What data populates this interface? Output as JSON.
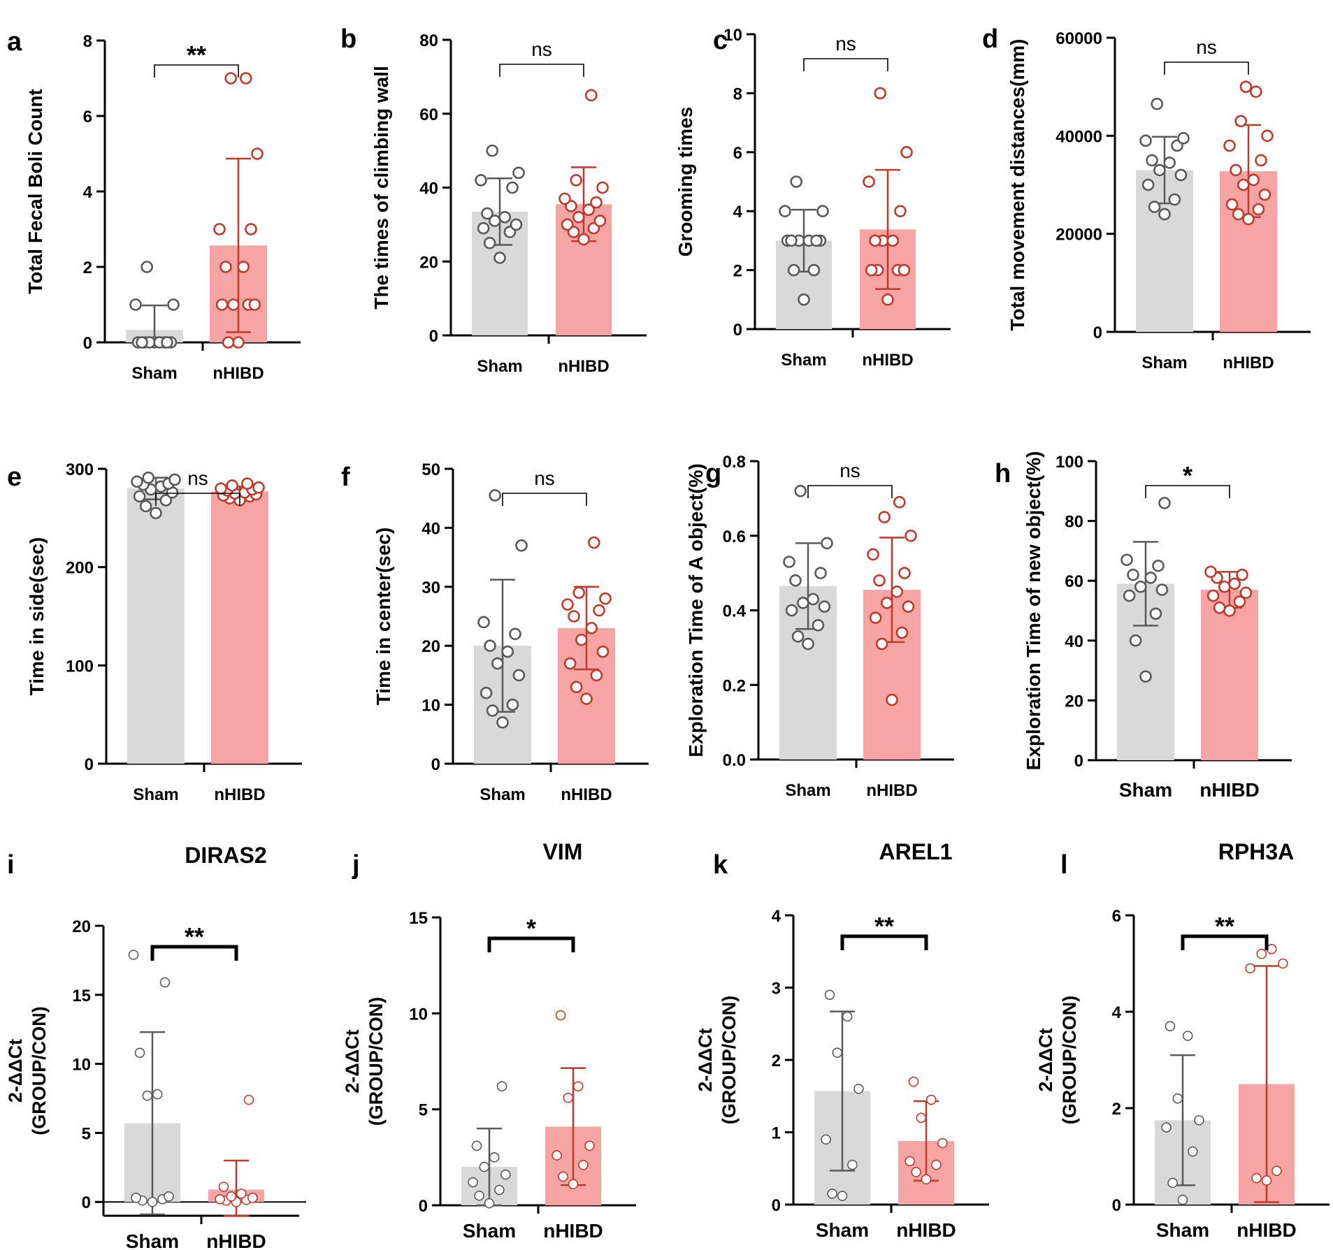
{
  "figure": {
    "colors": {
      "sham_bar": "#d9d9d9",
      "sham_point": "#595959",
      "nhibd_bar": "#f7a4a4",
      "nhibd_point": "#c0392b",
      "axis": "#000000"
    }
  },
  "chart_data": [
    {
      "panel_label": "a",
      "type": "bar",
      "title": "",
      "ylabel": "Total Fecal Boli Count",
      "ylim": [
        0,
        8
      ],
      "yticks": [
        "0",
        "2",
        "4",
        "6",
        "8"
      ],
      "categories": [
        "Sham",
        "nHIBD"
      ],
      "significance": "**",
      "bracket_style": "thin",
      "series": [
        {
          "name": "Sham",
          "mean": 0.33,
          "sd": 0.65,
          "points": [
            0,
            0,
            0,
            0,
            0,
            0,
            0,
            0,
            0,
            1,
            1,
            2
          ]
        },
        {
          "name": "nHIBD",
          "mean": 2.57,
          "sd": 2.3,
          "points": [
            0,
            0,
            1,
            1,
            1,
            1,
            2,
            2,
            3,
            3,
            5,
            7,
            7
          ]
        }
      ]
    },
    {
      "panel_label": "b",
      "type": "bar",
      "title": "",
      "ylabel": "The times of climbing wall",
      "ylim": [
        0,
        80
      ],
      "yticks": [
        "0",
        "20",
        "40",
        "60",
        "80"
      ],
      "categories": [
        "Sham",
        "nHIBD"
      ],
      "significance": "ns",
      "bracket_style": "thin",
      "series": [
        {
          "name": "Sham",
          "mean": 33.5,
          "sd": 9,
          "points": [
            21,
            25,
            28,
            29,
            30,
            31,
            32,
            33,
            40,
            42,
            44,
            50
          ]
        },
        {
          "name": "nHIBD",
          "mean": 35.5,
          "sd": 10,
          "points": [
            26,
            28,
            29,
            30,
            31,
            32,
            34,
            35,
            36,
            37,
            40,
            42,
            65
          ]
        }
      ]
    },
    {
      "panel_label": "c",
      "type": "bar",
      "title": "",
      "ylabel": "Grooming times",
      "ylim": [
        0,
        10
      ],
      "yticks": [
        "0",
        "2",
        "4",
        "6",
        "8",
        "10"
      ],
      "categories": [
        "Sham",
        "nHIBD"
      ],
      "significance": "ns",
      "bracket_style": "thin",
      "series": [
        {
          "name": "Sham",
          "mean": 3,
          "sd": 1.05,
          "points": [
            1,
            2,
            2,
            3,
            3,
            3,
            3,
            3,
            3,
            4,
            4,
            5
          ]
        },
        {
          "name": "nHIBD",
          "mean": 3.38,
          "sd": 2.02,
          "points": [
            1,
            2,
            2,
            2,
            2,
            3,
            3,
            3,
            4,
            5,
            6,
            8
          ]
        }
      ]
    },
    {
      "panel_label": "d",
      "type": "bar",
      "title": "",
      "ylabel": "Total movement distances(mm)",
      "ylim": [
        0,
        60000
      ],
      "yticks": [
        "0",
        "20000",
        "40000",
        "60000"
      ],
      "categories": [
        "Sham",
        "nHIBD"
      ],
      "significance": "ns",
      "bracket_style": "thin",
      "series": [
        {
          "name": "Sham",
          "mean": 33000,
          "sd": 6800,
          "points": [
            24000,
            25500,
            27000,
            30000,
            32000,
            33000,
            34500,
            35000,
            38000,
            39000,
            39500,
            46500
          ]
        },
        {
          "name": "nHIBD",
          "mean": 32800,
          "sd": 9400,
          "points": [
            23000,
            24000,
            25000,
            26000,
            28000,
            30000,
            31000,
            33000,
            35000,
            38000,
            40000,
            43000,
            49000,
            50000
          ]
        }
      ]
    },
    {
      "panel_label": "e",
      "type": "bar",
      "title": "",
      "ylabel": "Time in side(sec)",
      "ylim": [
        0,
        300
      ],
      "yticks": [
        "0",
        "100",
        "200",
        "300"
      ],
      "categories": [
        "Sham",
        "nHIBD"
      ],
      "significance": "ns",
      "bracket_style": "thin",
      "series": [
        {
          "name": "Sham",
          "mean": 280,
          "sd": 11,
          "points": [
            255,
            262,
            268,
            272,
            276,
            279,
            282,
            284,
            285,
            287,
            289,
            291
          ]
        },
        {
          "name": "nHIBD",
          "mean": 277,
          "sd": 5,
          "points": [
            268,
            270,
            272,
            273,
            274,
            275,
            276,
            278,
            279,
            280,
            281,
            283,
            285
          ]
        }
      ]
    },
    {
      "panel_label": "f",
      "type": "bar",
      "title": "",
      "ylabel": "Time in center(sec)",
      "ylim": [
        0,
        50
      ],
      "yticks": [
        "0",
        "10",
        "20",
        "30",
        "40",
        "50"
      ],
      "categories": [
        "Sham",
        "nHIBD"
      ],
      "significance": "ns",
      "bracket_style": "thin",
      "series": [
        {
          "name": "Sham",
          "mean": 20,
          "sd": 11.2,
          "points": [
            7,
            9,
            10,
            12,
            15,
            17,
            19,
            20,
            22,
            24,
            37,
            45.5
          ]
        },
        {
          "name": "nHIBD",
          "mean": 23,
          "sd": 7,
          "points": [
            11,
            13,
            15,
            17,
            19,
            21,
            23,
            25,
            26,
            27,
            28,
            29,
            37.5
          ]
        }
      ]
    },
    {
      "panel_label": "g",
      "type": "bar",
      "title": "",
      "ylabel": "Exploration Time of A object(%)",
      "ylim": [
        0,
        0.8
      ],
      "yticks": [
        "0.0",
        "0.2",
        "0.4",
        "0.6",
        "0.8"
      ],
      "categories": [
        "Sham",
        "nHIBD"
      ],
      "significance": "ns",
      "bracket_style": "thin",
      "series": [
        {
          "name": "Sham",
          "mean": 0.465,
          "sd": 0.115,
          "points": [
            0.31,
            0.33,
            0.36,
            0.4,
            0.41,
            0.42,
            0.43,
            0.48,
            0.5,
            0.53,
            0.58,
            0.72
          ]
        },
        {
          "name": "nHIBD",
          "mean": 0.455,
          "sd": 0.14,
          "points": [
            0.16,
            0.31,
            0.34,
            0.38,
            0.41,
            0.42,
            0.45,
            0.48,
            0.5,
            0.55,
            0.6,
            0.65,
            0.69
          ]
        }
      ]
    },
    {
      "panel_label": "h",
      "type": "bar",
      "title": "",
      "ylabel": "Exploration Time of new object(%)",
      "ylim": [
        0,
        100
      ],
      "yticks": [
        "0",
        "20",
        "40",
        "60",
        "80",
        "100"
      ],
      "categories": [
        "Sham",
        "nHIBD"
      ],
      "significance": "*",
      "bracket_style": "thin",
      "series": [
        {
          "name": "Sham",
          "mean": 59,
          "sd": 14,
          "points": [
            28,
            40,
            49,
            55,
            57,
            58,
            61,
            62,
            65,
            67,
            86
          ]
        },
        {
          "name": "nHIBD",
          "mean": 57,
          "sd": 6,
          "points": [
            50,
            51,
            53,
            55,
            56,
            58,
            59,
            61,
            62,
            63
          ]
        }
      ]
    },
    {
      "panel_label": "i",
      "type": "bar",
      "title": "DIRAS2",
      "ylabel": "2-ΔΔCt\n(GROUP/CON)",
      "ylim": [
        -1,
        20
      ],
      "yticks": [
        "0",
        "5",
        "10",
        "15",
        "20"
      ],
      "categories": [
        "Sham",
        "nHIBD"
      ],
      "significance": "**",
      "bracket_style": "thick",
      "series": [
        {
          "name": "Sham",
          "mean": 5.7,
          "sd": 6.6,
          "points": [
            0,
            0.1,
            0.2,
            0.3,
            0.4,
            7.7,
            7.8,
            10.8,
            15.9,
            17.9
          ]
        },
        {
          "name": "nHIBD",
          "mean": 0.9,
          "sd": 2.1,
          "points": [
            0,
            0.1,
            0.15,
            0.2,
            0.3,
            0.4,
            0.6,
            1.1,
            7.4
          ]
        }
      ]
    },
    {
      "panel_label": "j",
      "type": "bar",
      "title": "VIM",
      "ylabel": "2-ΔΔCt\n(GROUP/CON)",
      "ylim": [
        0,
        15
      ],
      "yticks": [
        "0",
        "5",
        "10",
        "15"
      ],
      "categories": [
        "Sham",
        "nHIBD"
      ],
      "significance": "*",
      "bracket_style": "thick",
      "series": [
        {
          "name": "Sham",
          "mean": 2,
          "sd": 2,
          "points": [
            0.1,
            0.5,
            0.8,
            1.2,
            1.6,
            2,
            2.5,
            3.1,
            6.2
          ]
        },
        {
          "name": "nHIBD",
          "mean": 4.1,
          "sd": 3.05,
          "points": [
            1.1,
            1.5,
            2.1,
            2.6,
            3.1,
            5.6,
            6.2,
            9.9
          ]
        }
      ]
    },
    {
      "panel_label": "k",
      "type": "bar",
      "title": "AREL1",
      "ylabel": "2-ΔΔCt\n(GROUP/CON)",
      "ylim": [
        0,
        4
      ],
      "yticks": [
        "0",
        "1",
        "2",
        "3",
        "4"
      ],
      "categories": [
        "Sham",
        "nHIBD"
      ],
      "significance": "**",
      "bracket_style": "thick",
      "series": [
        {
          "name": "Sham",
          "mean": 1.57,
          "sd": 1.1,
          "points": [
            0.12,
            0.15,
            0.55,
            0.9,
            1.6,
            2.1,
            2.6,
            2.9
          ]
        },
        {
          "name": "nHIBD",
          "mean": 0.88,
          "sd": 0.55,
          "points": [
            0.35,
            0.45,
            0.55,
            0.6,
            0.85,
            1.2,
            1.45,
            1.7
          ]
        }
      ]
    },
    {
      "panel_label": "l",
      "type": "bar",
      "title": "RPH3A",
      "ylabel": "2-ΔΔCt\n(GROUP/CON)",
      "ylim": [
        0,
        6
      ],
      "yticks": [
        "0",
        "2",
        "4",
        "6"
      ],
      "categories": [
        "Sham",
        "nHIBD"
      ],
      "significance": "**",
      "bracket_style": "thick",
      "series": [
        {
          "name": "Sham",
          "mean": 1.75,
          "sd": 1.35,
          "points": [
            0.1,
            0.45,
            1.1,
            1.6,
            1.75,
            2.2,
            3.5,
            3.7
          ]
        },
        {
          "name": "nHIBD",
          "mean": 2.5,
          "sd": 2.45,
          "points": [
            0.5,
            0.55,
            0.7,
            4.9,
            5.0,
            5.2,
            5.3
          ]
        }
      ]
    }
  ]
}
